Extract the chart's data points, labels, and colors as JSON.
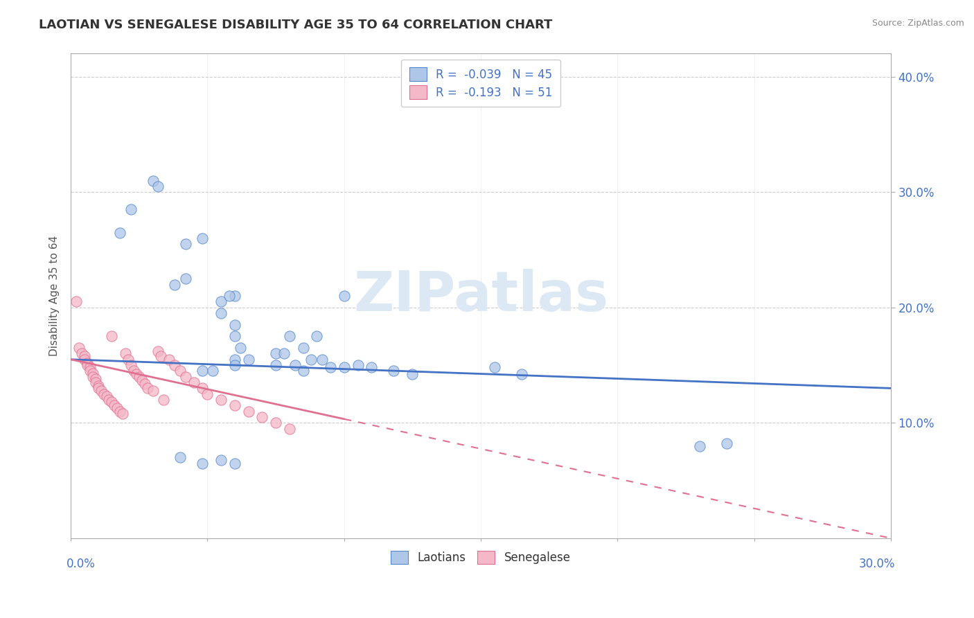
{
  "title": "LAOTIAN VS SENEGALESE DISABILITY AGE 35 TO 64 CORRELATION CHART",
  "source_text": "Source: ZipAtlas.com",
  "ylabel": "Disability Age 35 to 64",
  "xlim": [
    0.0,
    0.3
  ],
  "ylim": [
    0.0,
    0.42
  ],
  "laotian_R": -0.039,
  "laotian_N": 45,
  "senegalese_R": -0.193,
  "senegalese_N": 51,
  "laotian_color": "#aec6e8",
  "laotian_edge_color": "#5588cc",
  "laotian_line_color": "#4472c4",
  "senegalese_color": "#f4b8c8",
  "senegalese_edge_color": "#e07090",
  "senegalese_line_color": "#e07090",
  "legend_text_color": "#4472c4",
  "watermark_color": "#dde8f5",
  "laotian_x": [
    0.03,
    0.032,
    0.022,
    0.018,
    0.042,
    0.048,
    0.038,
    0.042,
    0.06,
    0.055,
    0.058,
    0.055,
    0.06,
    0.06,
    0.062,
    0.08,
    0.085,
    0.09,
    0.1,
    0.06,
    0.065,
    0.075,
    0.078,
    0.088,
    0.092,
    0.048,
    0.052,
    0.06,
    0.075,
    0.082,
    0.085,
    0.095,
    0.1,
    0.105,
    0.11,
    0.118,
    0.125,
    0.155,
    0.165,
    0.23,
    0.24,
    0.04,
    0.048,
    0.055,
    0.06
  ],
  "laotian_y": [
    0.31,
    0.305,
    0.285,
    0.265,
    0.255,
    0.26,
    0.22,
    0.225,
    0.21,
    0.205,
    0.21,
    0.195,
    0.185,
    0.175,
    0.165,
    0.175,
    0.165,
    0.175,
    0.21,
    0.155,
    0.155,
    0.16,
    0.16,
    0.155,
    0.155,
    0.145,
    0.145,
    0.15,
    0.15,
    0.15,
    0.145,
    0.148,
    0.148,
    0.15,
    0.148,
    0.145,
    0.142,
    0.148,
    0.142,
    0.08,
    0.082,
    0.07,
    0.065,
    0.068,
    0.065
  ],
  "senegalese_x": [
    0.002,
    0.003,
    0.004,
    0.005,
    0.005,
    0.006,
    0.006,
    0.007,
    0.007,
    0.008,
    0.008,
    0.009,
    0.009,
    0.01,
    0.01,
    0.011,
    0.012,
    0.013,
    0.014,
    0.015,
    0.015,
    0.016,
    0.017,
    0.018,
    0.019,
    0.02,
    0.021,
    0.022,
    0.023,
    0.024,
    0.025,
    0.026,
    0.027,
    0.028,
    0.03,
    0.032,
    0.033,
    0.034,
    0.036,
    0.038,
    0.04,
    0.042,
    0.045,
    0.048,
    0.05,
    0.055,
    0.06,
    0.065,
    0.07,
    0.075,
    0.08
  ],
  "senegalese_y": [
    0.205,
    0.165,
    0.16,
    0.158,
    0.155,
    0.152,
    0.15,
    0.148,
    0.145,
    0.143,
    0.14,
    0.138,
    0.135,
    0.132,
    0.13,
    0.128,
    0.125,
    0.123,
    0.12,
    0.118,
    0.175,
    0.115,
    0.113,
    0.11,
    0.108,
    0.16,
    0.155,
    0.15,
    0.145,
    0.142,
    0.14,
    0.137,
    0.134,
    0.13,
    0.128,
    0.162,
    0.158,
    0.12,
    0.155,
    0.15,
    0.145,
    0.14,
    0.135,
    0.13,
    0.125,
    0.12,
    0.115,
    0.11,
    0.105,
    0.1,
    0.095
  ],
  "laotian_trend_x0": 0.0,
  "laotian_trend_y0": 0.155,
  "laotian_trend_x1": 0.3,
  "laotian_trend_y1": 0.13,
  "senegalese_trend_x0": 0.0,
  "senegalese_trend_y0": 0.155,
  "senegalese_trend_x1": 0.3,
  "senegalese_trend_y1": 0.0
}
